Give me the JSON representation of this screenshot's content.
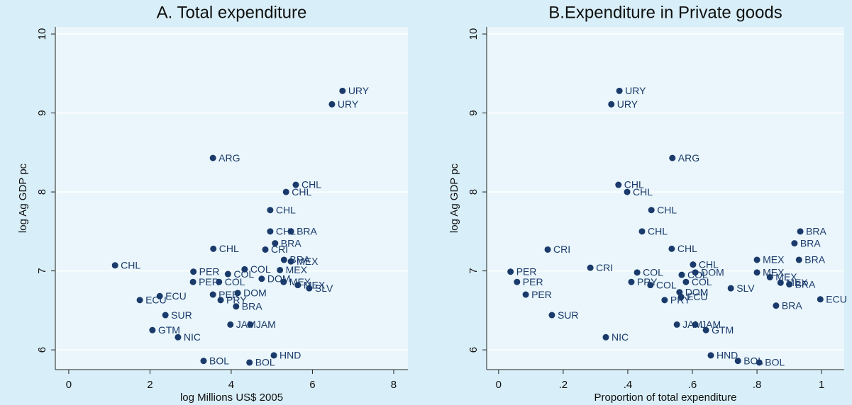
{
  "chart_data": [
    {
      "type": "scatter",
      "title": "A. Total expenditure",
      "xlabel": "log Millions US$ 2005",
      "ylabel": "log Ag GDP pc",
      "color": "#1a3a6b",
      "grid": true,
      "xlim": [
        -0.33,
        8.35
      ],
      "ylim": [
        5.75,
        10.09
      ],
      "xticks": [
        0,
        2,
        4,
        6,
        8
      ],
      "yticks": [
        6,
        7,
        8,
        9,
        10
      ],
      "labels": [
        "URY",
        "URY",
        "ARG",
        "CHL",
        "CHL",
        "CHL",
        "CHL",
        "BRA",
        "BRA",
        "CHL",
        "CRI",
        "CHL",
        "PER",
        "PER",
        "COL",
        "PER",
        "DOM",
        "PRY",
        "BRA",
        "ECU",
        "ECU",
        "SUR",
        "JAM",
        "JAM",
        "GTM",
        "NIC",
        "HND",
        "BOL",
        "BOL",
        "MEX",
        "BRA",
        "COL",
        "MEX",
        "COL",
        "DOM",
        "MEX",
        "SLV",
        "MEX"
      ],
      "x": [
        6.74,
        6.48,
        3.55,
        5.59,
        5.35,
        4.96,
        4.96,
        5.47,
        5.08,
        3.56,
        4.84,
        1.14,
        3.07,
        3.06,
        3.7,
        3.55,
        4.16,
        3.74,
        4.12,
        2.24,
        1.75,
        2.38,
        3.98,
        4.47,
        2.06,
        2.69,
        5.05,
        3.32,
        4.45,
        5.47,
        5.3,
        4.33,
        5.2,
        3.92,
        4.75,
        5.29,
        5.92,
        5.64
      ],
      "y": [
        9.28,
        9.11,
        8.43,
        8.09,
        8.0,
        7.77,
        7.5,
        7.5,
        7.35,
        7.28,
        7.27,
        7.07,
        6.99,
        6.86,
        6.86,
        6.7,
        6.72,
        6.63,
        6.55,
        6.68,
        6.63,
        6.44,
        6.32,
        6.32,
        6.25,
        6.16,
        5.93,
        5.86,
        5.84,
        7.12,
        7.14,
        7.02,
        7.01,
        6.96,
        6.9,
        6.86,
        6.78,
        6.82
      ]
    },
    {
      "type": "scatter",
      "title": "B.Expenditure in Private goods",
      "xlabel": "Proportion of total expenditure",
      "ylabel": "log Ag GDP pc",
      "color": "#1a3a6b",
      "grid": true,
      "xlim": [
        -0.037,
        1.07
      ],
      "ylim": [
        5.75,
        10.09
      ],
      "xticks": [
        0,
        {
          "value": 0.2,
          "label": ".2"
        },
        {
          "value": 0.4,
          "label": ".4"
        },
        {
          "value": 0.6,
          "label": ".6"
        },
        {
          "value": 0.8,
          "label": ".8"
        },
        1
      ],
      "yticks": [
        6,
        7,
        8,
        9,
        10
      ],
      "labels": [
        "URY",
        "URY",
        "ARG",
        "CHL",
        "CHL",
        "CHL",
        "CHL",
        "BRA",
        "BRA",
        "CHL",
        "CRI",
        "CRI",
        "PER",
        "PER",
        "PER",
        "COL",
        "PRY",
        "COL",
        "CHL",
        "COL",
        "COL",
        "DOM",
        "DOM",
        "PRY",
        "ECU",
        "SLV",
        "MEX",
        "MEX",
        "MEX",
        "BRA",
        "MEX",
        "BRA",
        "ECU",
        "BRA",
        "SUR",
        "JAM",
        "JAM",
        "GTM",
        "NIC",
        "HND",
        "BOL",
        "BOL"
      ],
      "x": [
        0.374,
        0.349,
        0.538,
        0.371,
        0.398,
        0.473,
        0.444,
        0.934,
        0.916,
        0.536,
        0.152,
        0.284,
        0.037,
        0.057,
        0.084,
        0.429,
        0.411,
        0.47,
        0.602,
        0.567,
        0.58,
        0.609,
        0.56,
        0.514,
        0.565,
        0.719,
        0.8,
        0.8,
        0.84,
        0.93,
        0.873,
        0.9,
        0.996,
        0.859,
        0.165,
        0.552,
        0.609,
        0.642,
        0.332,
        0.657,
        0.741,
        0.807
      ],
      "y": [
        9.28,
        9.11,
        8.43,
        8.09,
        8.0,
        7.77,
        7.5,
        7.5,
        7.35,
        7.28,
        7.27,
        7.04,
        6.99,
        6.86,
        6.7,
        6.98,
        6.86,
        6.82,
        7.08,
        6.95,
        6.86,
        6.98,
        6.73,
        6.63,
        6.67,
        6.78,
        7.14,
        6.98,
        6.92,
        7.14,
        6.85,
        6.83,
        6.64,
        6.56,
        6.44,
        6.32,
        6.32,
        6.25,
        6.16,
        5.93,
        5.86,
        5.84
      ]
    }
  ]
}
